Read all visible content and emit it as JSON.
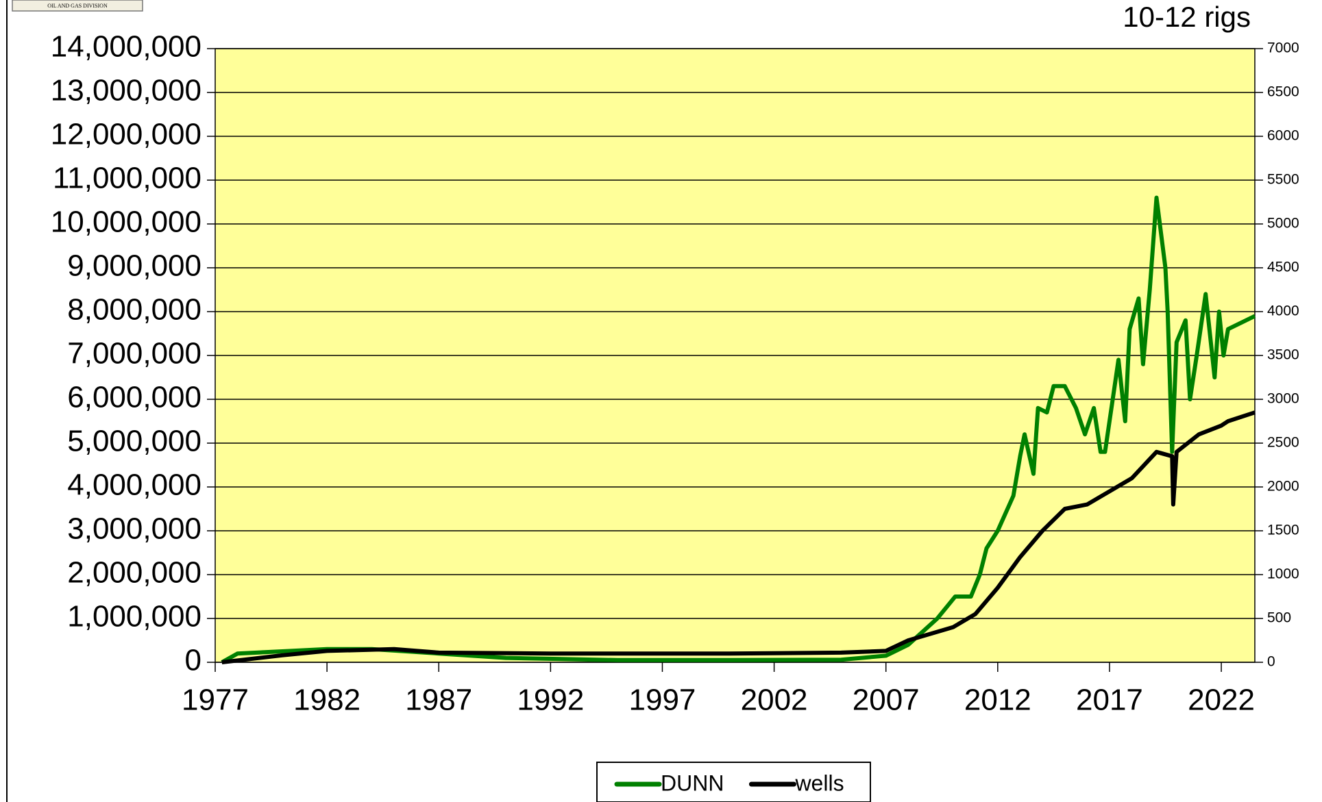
{
  "logo_text": "OIL AND GAS DIVISION",
  "chart_data": {
    "type": "line",
    "annotation": "10-12 rigs",
    "xlim": [
      1977,
      2023.5
    ],
    "xticks": [
      1977,
      1982,
      1987,
      1992,
      1997,
      2002,
      2007,
      2012,
      2017,
      2022
    ],
    "ylim": [
      0,
      14000000
    ],
    "yticks": [
      0,
      {
        "value": 1000000,
        "label": "1,000,000"
      },
      {
        "value": 2000000,
        "label": "2,000,000"
      },
      {
        "value": 3000000,
        "label": "3,000,000"
      },
      {
        "value": 4000000,
        "label": "4,000,000"
      },
      {
        "value": 5000000,
        "label": "5,000,000"
      },
      {
        "value": 6000000,
        "label": "6,000,000"
      },
      {
        "value": 7000000,
        "label": "7,000,000"
      },
      {
        "value": 8000000,
        "label": "8,000,000"
      },
      {
        "value": 9000000,
        "label": "9,000,000"
      },
      {
        "value": 10000000,
        "label": "10,000,000"
      },
      {
        "value": 11000000,
        "label": "11,000,000"
      },
      {
        "value": 12000000,
        "label": "12,000,000"
      },
      {
        "value": 13000000,
        "label": "13,000,000"
      },
      {
        "value": 14000000,
        "label": "14,000,000"
      }
    ],
    "y2lim": [
      0,
      7000
    ],
    "y2ticks": [
      0,
      500,
      1000,
      1500,
      2000,
      2500,
      3000,
      3500,
      4000,
      4500,
      5000,
      5500,
      6000,
      6500,
      7000
    ],
    "grid": true,
    "plot_background": "#ffff99",
    "legend": "bottom",
    "series": [
      {
        "name": "DUNN",
        "color": "#008000",
        "x": [
          1977.3,
          1978,
          1980,
          1982,
          1984,
          1987,
          1990,
          1995,
          2000,
          2005,
          2007,
          2008,
          2009.3,
          2010.1,
          2010.8,
          2011.2,
          2011.5,
          2012,
          2012.7,
          2013,
          2013.2,
          2013.6,
          2013.8,
          2014.2,
          2014.5,
          2015,
          2015.5,
          2015.9,
          2016.3,
          2016.6,
          2016.8,
          2017.2,
          2017.4,
          2017.7,
          2017.9,
          2018.3,
          2018.5,
          2018.8,
          2019.1,
          2019.5,
          2019.6,
          2019.8,
          2020.0,
          2020.4,
          2020.6,
          2020.9,
          2021.3,
          2021.7,
          2021.9,
          2022.1,
          2022.3,
          2023.5
        ],
        "values": [
          0,
          200000,
          250000,
          300000,
          300000,
          200000,
          100000,
          50000,
          50000,
          60000,
          150000,
          400000,
          1000000,
          1500000,
          1500000,
          2000000,
          2600000,
          3000000,
          3800000,
          4700000,
          5200000,
          4300000,
          5800000,
          5700000,
          6300000,
          6300000,
          5800000,
          5200000,
          5800000,
          4800000,
          4800000,
          6200000,
          6900000,
          5500000,
          7600000,
          8300000,
          6800000,
          8500000,
          10600000,
          9000000,
          8000000,
          4800000,
          7300000,
          7800000,
          6000000,
          7000000,
          8400000,
          6500000,
          8000000,
          7000000,
          7600000,
          7900000
        ]
      },
      {
        "name": "wells",
        "color": "#000000",
        "axis": "y2",
        "x": [
          1977.3,
          1980,
          1982,
          1985,
          1987,
          1992,
          2000,
          2005,
          2007,
          2008,
          2010,
          2011,
          2012,
          2013,
          2014,
          2015,
          2016,
          2017,
          2018,
          2019.1,
          2019.8,
          2019.85,
          2020.0,
          2021,
          2022,
          2022.3,
          2023.5
        ],
        "values": [
          0,
          80,
          130,
          150,
          110,
          100,
          100,
          110,
          130,
          250,
          400,
          550,
          850,
          1200,
          1500,
          1750,
          1800,
          1950,
          2100,
          2400,
          2350,
          1800,
          2400,
          2600,
          2700,
          2750,
          2850
        ]
      }
    ]
  }
}
